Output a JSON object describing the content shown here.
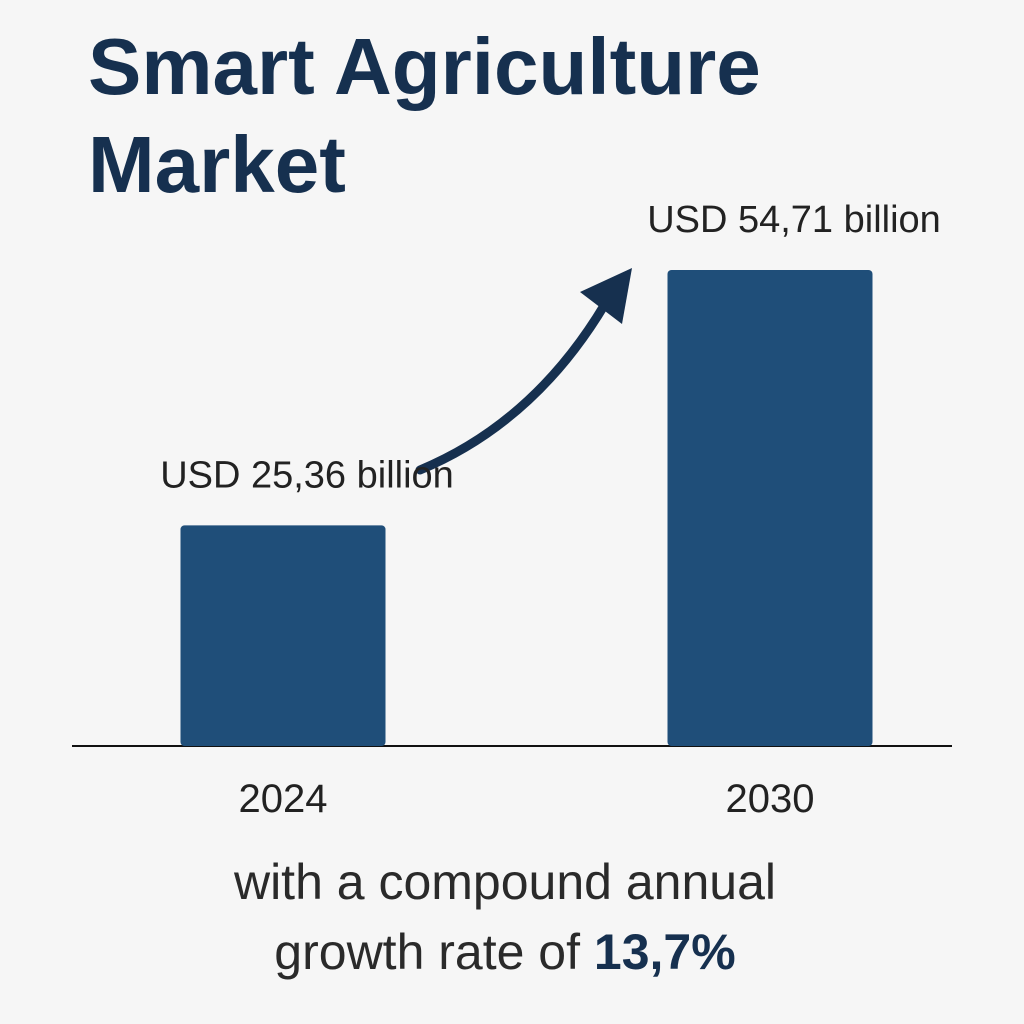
{
  "chart_data": {
    "type": "bar",
    "title": "Smart Agriculture Market",
    "categories": [
      "2024",
      "2030"
    ],
    "values": [
      25.36,
      54.71
    ],
    "value_labels": [
      "USD 25,36 billion",
      "USD 54,71 billion"
    ],
    "color": "#1f4e79",
    "footnote": [
      "with a compound annual",
      "growth rate of"
    ],
    "cagr": "13,7%"
  }
}
